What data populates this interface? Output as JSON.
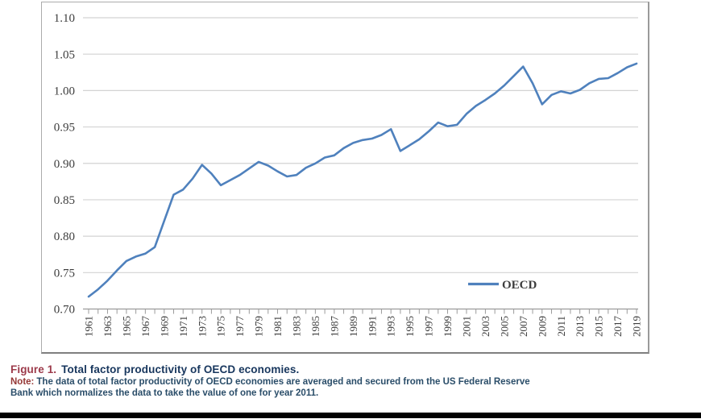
{
  "figure": {
    "label": "Figure 1.",
    "title": "Total factor productivity of OECD economies.",
    "note_label": "Note:",
    "note_line1": "The data of total factor productivity of OECD economies are averaged and secured from the US Federal Reserve",
    "note_line2": "Bank which normalizes the data to take the value of one for year 2011."
  },
  "colors": {
    "series_blue": "#4f81bd",
    "gridline": "#d3d3d3",
    "axis_line": "#9b9b9b",
    "label_text": "#3d3d3d",
    "figure_label_red": "#9c3a4a",
    "caption_navy": "#17365d",
    "note_body": "#2a4d69",
    "bottom_bar": "#010101"
  },
  "chart_data": {
    "type": "line",
    "title": "",
    "xlabel": "",
    "ylabel": "",
    "ylim": [
      0.7,
      1.1
    ],
    "ytick_step": 0.05,
    "yticks": [
      1.1,
      1.05,
      1.0,
      0.95,
      0.9,
      0.85,
      0.8,
      0.75,
      0.7
    ],
    "grid": true,
    "legend": {
      "position": "inside-right",
      "entries": [
        "OECD"
      ]
    },
    "xtick_labels": [
      "1961",
      "1963",
      "1965",
      "1967",
      "1969",
      "1971",
      "1973",
      "1975",
      "1977",
      "1979",
      "1981",
      "1983",
      "1985",
      "1987",
      "1989",
      "1991",
      "1993",
      "1995",
      "1997",
      "1999",
      "2001",
      "2003",
      "2005",
      "2007",
      "2009",
      "2011",
      "2013",
      "2015",
      "2017",
      "2019"
    ],
    "x": [
      1961,
      1962,
      1963,
      1964,
      1965,
      1966,
      1967,
      1968,
      1969,
      1970,
      1971,
      1972,
      1973,
      1974,
      1975,
      1976,
      1977,
      1978,
      1979,
      1980,
      1981,
      1982,
      1983,
      1984,
      1985,
      1986,
      1987,
      1988,
      1989,
      1990,
      1991,
      1992,
      1993,
      1994,
      1995,
      1996,
      1997,
      1998,
      1999,
      2000,
      2001,
      2002,
      2003,
      2004,
      2005,
      2006,
      2007,
      2008,
      2009,
      2010,
      2011,
      2012,
      2013,
      2014,
      2015,
      2016,
      2017,
      2018,
      2019
    ],
    "series": [
      {
        "name": "OECD",
        "color": "#4f81bd",
        "values": [
          0.717,
          0.727,
          0.739,
          0.753,
          0.766,
          0.772,
          0.776,
          0.785,
          0.821,
          0.857,
          0.864,
          0.879,
          0.898,
          0.886,
          0.87,
          0.877,
          0.884,
          0.893,
          0.902,
          0.897,
          0.889,
          0.882,
          0.884,
          0.894,
          0.9,
          0.908,
          0.911,
          0.921,
          0.928,
          0.932,
          0.934,
          0.939,
          0.947,
          0.917,
          0.925,
          0.933,
          0.944,
          0.956,
          0.951,
          0.953,
          0.968,
          0.979,
          0.987,
          0.996,
          1.007,
          1.02,
          1.033,
          1.01,
          0.981,
          0.994,
          0.999,
          0.996,
          1.001,
          1.01,
          1.016,
          1.017,
          1.024,
          1.032,
          1.037
        ]
      }
    ]
  }
}
